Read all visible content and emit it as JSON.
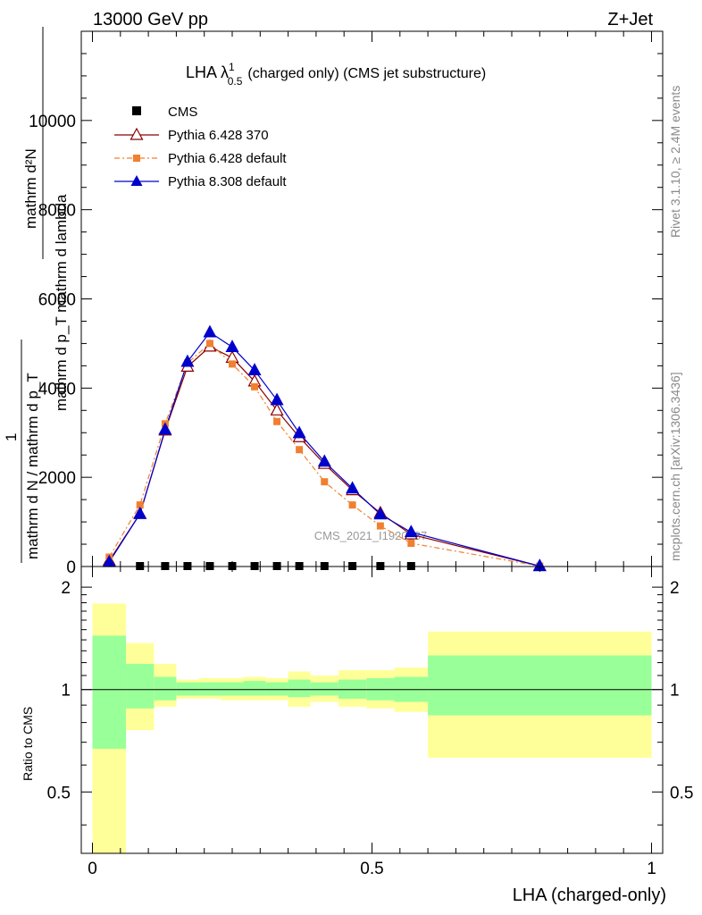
{
  "header": {
    "left": "13000 GeV pp",
    "right": "Z+Jet"
  },
  "side_labels": {
    "rivet": "Rivet 3.1.10, ≥ 2.4M events",
    "mcplots": "mcplots.cern.ch [arXiv:1306.3436]"
  },
  "watermark": "CMS_2021_I1920187",
  "colors": {
    "cms": "#000000",
    "pythia6_370": "#8b0000",
    "pythia6_default": "#f08030",
    "pythia8_default": "#0000cc",
    "band_inner": "#99ff99",
    "band_outer": "#ffff99"
  },
  "chart_data": [
    {
      "type": "line",
      "title_main": "LHA λ",
      "title_sup": "1",
      "title_sub": "0.5",
      "title_rest": "(charged only) (CMS jet substructure)",
      "ylabel_numerator": "mathrm d²N",
      "ylabel_num_line2": "1",
      "ylabel_den_line1": "mathrm d p_T mathrm d lambda",
      "ylabel_den_line2": "mathrm d N / mathrm d p_T",
      "xlim": [
        -0.02,
        1.02
      ],
      "ylim": [
        0,
        12000
      ],
      "yticks": [
        0,
        2000,
        4000,
        6000,
        8000,
        10000
      ],
      "ytick_labels": [
        "0",
        "2000",
        "4000",
        "6000",
        "8000",
        "10000"
      ],
      "legend_position": "top-left",
      "x": [
        0.03,
        0.085,
        0.13,
        0.17,
        0.21,
        0.25,
        0.29,
        0.33,
        0.37,
        0.415,
        0.465,
        0.515,
        0.57,
        0.8
      ],
      "series": [
        {
          "name": "CMS",
          "marker": "square",
          "x": [
            0.085,
            0.13,
            0.17,
            0.21,
            0.25,
            0.29,
            0.33,
            0.37,
            0.415,
            0.465,
            0.515,
            0.57
          ],
          "values": [
            0,
            0,
            0,
            0,
            0,
            0,
            0,
            0,
            0,
            0,
            0,
            0
          ]
        },
        {
          "name": "Pythia 6.428 370",
          "marker": "triangle-open",
          "values": [
            130,
            1180,
            3050,
            4480,
            4930,
            4680,
            4150,
            3500,
            2900,
            2300,
            1710,
            1200,
            720,
            10
          ]
        },
        {
          "name": "Pythia 6.428 default",
          "marker": "square",
          "values": [
            210,
            1380,
            3200,
            4560,
            5000,
            4540,
            4030,
            3250,
            2620,
            1900,
            1380,
            910,
            520,
            10
          ]
        },
        {
          "name": "Pythia 8.308 default",
          "marker": "triangle",
          "values": [
            100,
            1180,
            3070,
            4590,
            5250,
            4920,
            4400,
            3730,
            2990,
            2350,
            1750,
            1170,
            770,
            10
          ]
        }
      ]
    },
    {
      "type": "area",
      "ylabel": "Ratio to CMS",
      "xlabel": "LHA (charged-only)",
      "xlim": [
        -0.02,
        1.02
      ],
      "ylim": [
        0.33,
        2.3
      ],
      "yticks": [
        0.5,
        1,
        2
      ],
      "ytick_labels": [
        "0.5",
        "1",
        "2"
      ],
      "xticks": [
        0,
        0.5,
        1
      ],
      "xtick_labels": [
        "0",
        "0.5",
        "1"
      ],
      "reference": 1,
      "bins": [
        {
          "lo": 0.0,
          "hi": 0.06,
          "inner": [
            0.67,
            1.44
          ],
          "outer": [
            0.33,
            1.79
          ]
        },
        {
          "lo": 0.06,
          "hi": 0.11,
          "inner": [
            0.88,
            1.19
          ],
          "outer": [
            0.76,
            1.37
          ]
        },
        {
          "lo": 0.11,
          "hi": 0.15,
          "inner": [
            0.93,
            1.09
          ],
          "outer": [
            0.89,
            1.19
          ]
        },
        {
          "lo": 0.15,
          "hi": 0.19,
          "inner": [
            0.96,
            1.05
          ],
          "outer": [
            0.94,
            1.07
          ]
        },
        {
          "lo": 0.19,
          "hi": 0.23,
          "inner": [
            0.96,
            1.05
          ],
          "outer": [
            0.94,
            1.08
          ]
        },
        {
          "lo": 0.23,
          "hi": 0.27,
          "inner": [
            0.96,
            1.05
          ],
          "outer": [
            0.93,
            1.08
          ]
        },
        {
          "lo": 0.27,
          "hi": 0.31,
          "inner": [
            0.96,
            1.06
          ],
          "outer": [
            0.93,
            1.09
          ]
        },
        {
          "lo": 0.31,
          "hi": 0.35,
          "inner": [
            0.96,
            1.05
          ],
          "outer": [
            0.93,
            1.08
          ]
        },
        {
          "lo": 0.35,
          "hi": 0.39,
          "inner": [
            0.95,
            1.07
          ],
          "outer": [
            0.89,
            1.13
          ]
        },
        {
          "lo": 0.39,
          "hi": 0.44,
          "inner": [
            0.96,
            1.05
          ],
          "outer": [
            0.92,
            1.1
          ]
        },
        {
          "lo": 0.44,
          "hi": 0.49,
          "inner": [
            0.94,
            1.07
          ],
          "outer": [
            0.89,
            1.14
          ]
        },
        {
          "lo": 0.49,
          "hi": 0.54,
          "inner": [
            0.93,
            1.08
          ],
          "outer": [
            0.88,
            1.14
          ]
        },
        {
          "lo": 0.54,
          "hi": 0.6,
          "inner": [
            0.92,
            1.09
          ],
          "outer": [
            0.86,
            1.16
          ]
        },
        {
          "lo": 0.6,
          "hi": 1.0,
          "inner": [
            0.84,
            1.26
          ],
          "outer": [
            0.63,
            1.48
          ]
        }
      ]
    }
  ]
}
